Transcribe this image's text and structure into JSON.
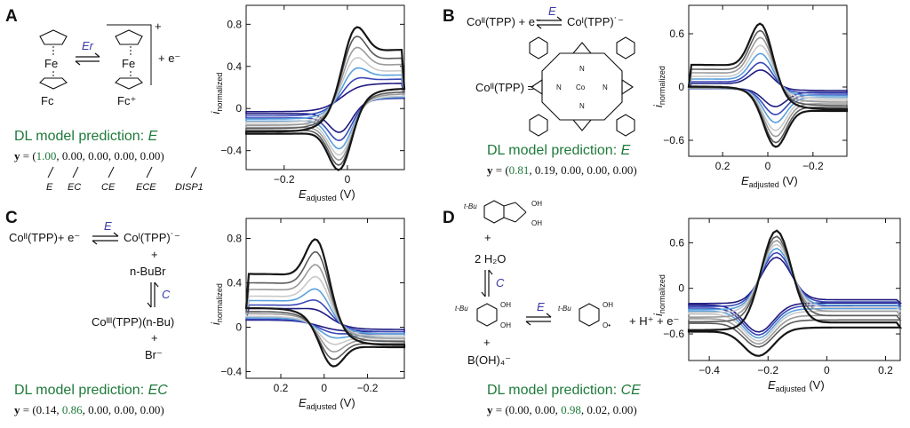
{
  "panels": {
    "A": {
      "label": "A",
      "reactant": "Fe",
      "product": "Fe",
      "reactant_name": "Fc",
      "product_name": "Fc⁺",
      "charge": "+",
      "step_label": "Er",
      "electron": "+ e⁻",
      "prediction_prefix": "DL model prediction: ",
      "prediction_value": "E",
      "vector_prefix": "y = (",
      "vector_values": [
        "1.00",
        "0.00",
        "0.00",
        "0.00",
        "0.00"
      ],
      "highlight_index": 0,
      "mechanism_names": [
        "E",
        "EC",
        "CE",
        "ECE",
        "DISP1"
      ]
    },
    "B": {
      "label": "B",
      "eq_left": "Coᴵᴵ(TPP) + e⁻",
      "eq_right": "Coᴵ(TPP)˙⁻",
      "step_label": "E",
      "species_label": "Coᴵᴵ(TPP) =",
      "center": "Co",
      "prediction_prefix": "DL model prediction: ",
      "prediction_value": "E",
      "vector_prefix": "y = (",
      "vector_values": [
        "0.81",
        "0.19",
        "0.00",
        "0.00",
        "0.00"
      ],
      "highlight_index": 0
    },
    "C": {
      "label": "C",
      "eq_left": "Coᴵᴵ(TPP)+ e⁻",
      "eq_right": "Coᴵ(TPP)˙⁻",
      "step_label": "E",
      "plus1": "+",
      "reagent": "n-BuBr",
      "step2_label": "C",
      "product": "Coᴵᴵᴵ(TPP)(n-Bu)",
      "plus2": "+",
      "byproduct": "Br⁻",
      "prediction_prefix": "DL model prediction: ",
      "prediction_value": "EC",
      "vector_prefix": "y = (",
      "vector_values": [
        "0.14",
        "0.86",
        "0.00",
        "0.00",
        "0.00"
      ],
      "highlight_index": 1
    },
    "D": {
      "label": "D",
      "tbu": "t-Bu",
      "plus1": "+",
      "water": "2 H₂O",
      "step_label": "C",
      "plus2": "+",
      "boric": "B(OH)₄⁻",
      "step2_label": "E",
      "products": "+ H⁺ + e⁻",
      "oh": "OH",
      "o_rad": "O•",
      "prediction_prefix": "DL model prediction: ",
      "prediction_value": "CE",
      "vector_prefix": "y = (",
      "vector_values": [
        "0.00",
        "0.00",
        "0.98",
        "0.02",
        "0.00"
      ],
      "highlight_index": 2
    }
  },
  "axis_text": {
    "ylabel": "i",
    "ylabel_sub": "normalized",
    "xlabel": "E",
    "xlabel_sub": "adjusted",
    "xlabel_unit": " (V)"
  },
  "colors": {
    "series": [
      "#1f1a80",
      "#3a48b8",
      "#5aa0dc",
      "#c9c9c9",
      "#9a9a9a",
      "#5a5a5a",
      "#161616"
    ],
    "prediction": "#1e7a3a",
    "step": "#3b3aa8"
  },
  "chart_data": [
    {
      "panel": "A",
      "type": "line",
      "curve": "cyclic voltammogram",
      "xlim": [
        -0.32,
        0.18
      ],
      "ylim": [
        -0.58,
        0.98
      ],
      "x_reversed": false,
      "xticks": [
        -0.2,
        0.0
      ],
      "xtick_labels": [
        "−0.2",
        "0"
      ],
      "yticks": [
        -0.4,
        0.0,
        0.4,
        0.8
      ],
      "ytick_labels": [
        "−0.4",
        "0",
        "0.4",
        "0.8"
      ],
      "e0": 0.0,
      "scan_rates": 7,
      "peak_anodic": [
        0.25,
        0.36,
        0.48,
        0.6,
        0.72,
        0.85,
        0.96
      ],
      "peak_cathodic": [
        -0.25,
        -0.34,
        -0.43,
        -0.5,
        -0.56,
        -0.62,
        -0.68
      ],
      "tail_high": [
        0.24,
        0.28,
        0.32,
        0.36,
        0.42,
        0.48,
        0.56
      ],
      "tail_low": [
        -0.03,
        -0.07,
        -0.1,
        -0.13,
        -0.16,
        -0.19,
        -0.22
      ]
    },
    {
      "panel": "B",
      "type": "line",
      "curve": "cyclic voltammogram",
      "xlim": [
        0.35,
        -0.35
      ],
      "ylim": [
        -0.78,
        0.92
      ],
      "x_reversed": true,
      "xticks": [
        0.2,
        0.0,
        -0.2
      ],
      "xtick_labels": [
        "0.2",
        "0",
        "−0.2"
      ],
      "yticks": [
        -0.6,
        0.0,
        0.6
      ],
      "ytick_labels": [
        "−0.6",
        "0",
        "0.6"
      ],
      "e0": 0.0,
      "scan_rates": 7,
      "peak_anodic": [
        0.22,
        0.32,
        0.44,
        0.55,
        0.66,
        0.76,
        0.86
      ],
      "peak_cathodic": [
        -0.22,
        -0.32,
        -0.42,
        -0.52,
        -0.6,
        -0.68,
        -0.74
      ],
      "tail_high": [
        0.04,
        0.06,
        0.09,
        0.12,
        0.16,
        0.2,
        0.25
      ],
      "tail_low": [
        -0.04,
        -0.07,
        -0.1,
        -0.13,
        -0.17,
        -0.21,
        -0.25
      ]
    },
    {
      "panel": "C",
      "type": "line",
      "curve": "cyclic voltammogram",
      "xlim": [
        0.36,
        -0.37
      ],
      "ylim": [
        -0.46,
        0.98
      ],
      "x_reversed": true,
      "xticks": [
        0.2,
        0.0,
        -0.2
      ],
      "xtick_labels": [
        "0.2",
        "0",
        "−0.2"
      ],
      "yticks": [
        -0.4,
        0.0,
        0.4,
        0.8
      ],
      "ytick_labels": [
        "−0.4",
        "0",
        "0.4",
        "0.8"
      ],
      "e0": 0.0,
      "scan_rates": 7,
      "peak_anodic": [
        0.2,
        0.3,
        0.42,
        0.55,
        0.68,
        0.82,
        0.96
      ],
      "peak_cathodic": [
        -0.02,
        -0.06,
        -0.11,
        -0.18,
        -0.26,
        -0.34,
        -0.42
      ],
      "tail_high": [
        0.17,
        0.2,
        0.24,
        0.28,
        0.34,
        0.4,
        0.48
      ],
      "tail_low": [
        -0.02,
        -0.04,
        -0.06,
        -0.08,
        -0.1,
        -0.13,
        -0.16
      ]
    },
    {
      "panel": "D",
      "type": "line",
      "curve": "cyclic voltammogram",
      "xlim": [
        -0.47,
        0.25
      ],
      "ylim": [
        -0.95,
        0.92
      ],
      "x_reversed": false,
      "xticks": [
        -0.4,
        -0.2,
        0.0,
        0.2
      ],
      "xtick_labels": [
        "−0.4",
        "−0.2",
        "0",
        "0.2"
      ],
      "yticks": [
        -0.6,
        0.0,
        0.6
      ],
      "ytick_labels": [
        "−0.6",
        "0",
        "0.6"
      ],
      "e0": -0.2,
      "scan_rates": 7,
      "peak_anodic": [
        0.45,
        0.52,
        0.58,
        0.64,
        0.7,
        0.76,
        0.85
      ],
      "peak_cathodic": [
        -0.58,
        -0.62,
        -0.66,
        -0.7,
        -0.74,
        -0.78,
        -0.9
      ],
      "tail_high": [
        -0.15,
        -0.18,
        -0.22,
        -0.25,
        -0.3,
        -0.36,
        -0.45
      ],
      "tail_low": [
        -0.2,
        -0.24,
        -0.28,
        -0.32,
        -0.38,
        -0.44,
        -0.55
      ]
    }
  ]
}
